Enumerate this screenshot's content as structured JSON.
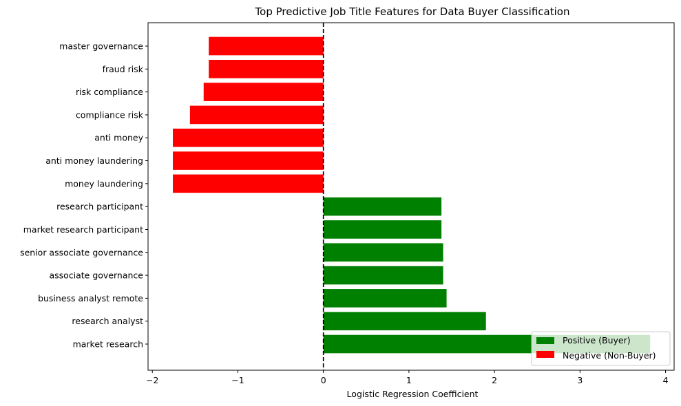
{
  "chart_data": {
    "type": "bar",
    "orientation": "horizontal",
    "title": "Top Predictive Job Title Features for Data Buyer Classification",
    "xlabel": "Logistic Regression Coefficient",
    "ylabel": "",
    "xlim": [
      -2.05,
      4.1
    ],
    "xticks": [
      -2,
      -1,
      0,
      1,
      2,
      3,
      4
    ],
    "xtick_labels": [
      "−2",
      "−1",
      "0",
      "1",
      "2",
      "3",
      "4"
    ],
    "zero_line": "dashed",
    "grid": false,
    "legend_position": "bottom-right",
    "colors": {
      "positive": "#008000",
      "negative": "#ff0000"
    },
    "legend": [
      {
        "label": "Positive (Buyer)",
        "color": "#008000"
      },
      {
        "label": "Negative (Non-Buyer)",
        "color": "#ff0000"
      }
    ],
    "categories": [
      "master governance",
      "fraud risk",
      "risk compliance",
      "compliance risk",
      "anti money",
      "anti money laundering",
      "money laundering",
      "research participant",
      "market research participant",
      "senior associate governance",
      "associate governance",
      "business analyst remote",
      "research analyst",
      "market research"
    ],
    "values": [
      -1.34,
      -1.34,
      -1.4,
      -1.56,
      -1.76,
      -1.76,
      -1.76,
      1.38,
      1.38,
      1.4,
      1.4,
      1.44,
      1.9,
      3.82
    ]
  }
}
